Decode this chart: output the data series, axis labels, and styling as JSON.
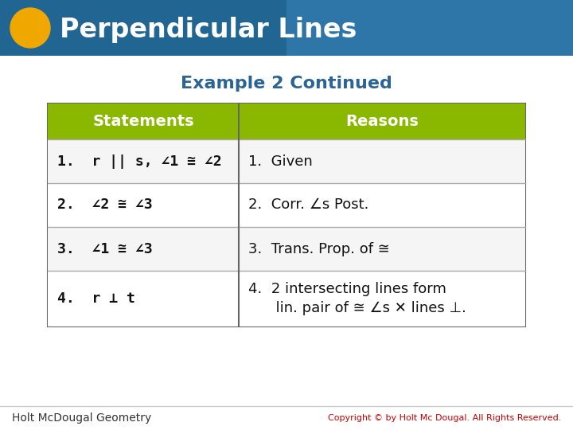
{
  "title_text": "Perpendicular Lines",
  "subtitle_text": "Example 2 Continued",
  "header_bg": "#7ab800",
  "header_text_color": "#ffffff",
  "row_bg_odd": "#f0f0f0",
  "row_bg_even": "#ffffff",
  "table_border_color": "#666666",
  "top_bar_color": "#2a6496",
  "top_bar_gradient_end": "#4a90c4",
  "title_color": "#ffffff",
  "subtitle_color": "#2a6496",
  "footer_text_left": "Holt McDougal Geometry",
  "footer_text_right": "Copyright © by Holt Mc Dougal. All Rights Reserved.",
  "footer_bg": "#ffffff",
  "circle_color": "#f0a800",
  "statements": [
    "1.  r || s, ∠1 ≅ ∠2",
    "2.  ∠2 ≅ ∠3",
    "3.  ∠1 ≅ ∠3",
    "4.  r ⊥ t"
  ],
  "reasons": [
    "1.  Given",
    "2.  Corr. ∠s Post.",
    "3.  Trans. Prop. of ≅",
    "4.  2 intersecting lines form\n      lin. pair of ≅ ∠s ✕ lines ⊥."
  ]
}
